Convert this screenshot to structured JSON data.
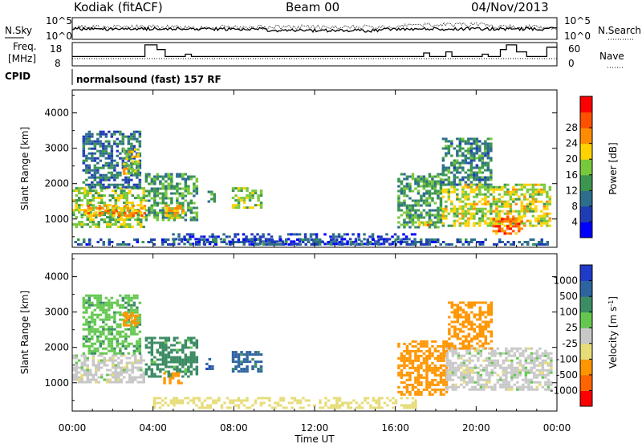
{
  "header": {
    "station": "Kodiak (fitACF)",
    "beam": "Beam 00",
    "date": "04/Nov/2013"
  },
  "top_panel": {
    "left_label": "N.Sky",
    "right_label": "N.Search",
    "left_ticks": [
      "10^5",
      "10^0"
    ],
    "right_ticks": [
      "10^5",
      "10^0"
    ]
  },
  "freq_panel": {
    "left_label_line1": "Freq.",
    "left_label_line2": "[MHz]",
    "right_label": "Nave",
    "left_ticks": [
      "18",
      "8"
    ],
    "right_ticks": [
      "60",
      "0"
    ],
    "series": [
      {
        "x_hours": [
          0,
          3.6,
          3.6,
          4.2,
          4.2,
          4.6,
          4.6,
          5.6,
          5.6,
          5.9,
          5.9,
          17.4,
          17.4,
          17.7,
          17.7,
          18.5,
          18.5,
          18.8,
          18.8,
          20.3,
          20.3,
          20.6,
          20.6,
          21.2,
          21.2,
          21.5,
          21.5,
          22.0,
          22.0,
          22.5,
          22.5,
          23.5,
          23.5,
          24
        ],
        "freq_mhz": [
          12,
          12,
          17,
          17,
          15,
          15,
          12,
          12,
          13,
          13,
          12,
          12,
          13.5,
          13.5,
          12,
          12,
          14,
          14,
          12,
          12,
          13,
          13,
          12,
          12,
          15,
          15,
          17,
          17,
          14,
          14,
          12,
          12,
          16,
          16
        ]
      }
    ]
  },
  "cpid": {
    "label": "CPID",
    "program": "normalsound (fast) 157 RF"
  },
  "x_axis": {
    "label": "Time UT",
    "ticks": [
      "00:00",
      "04:00",
      "08:00",
      "12:00",
      "16:00",
      "20:00",
      "00:00"
    ]
  },
  "chart_data": [
    {
      "type": "heatmap",
      "panel": "power",
      "ylabel": "Slant Range [km]",
      "y_ticks": [
        1000,
        2000,
        3000,
        4000
      ],
      "ylim": [
        200,
        4650
      ],
      "xlim_hours": [
        0,
        24
      ],
      "colorbar": {
        "label": "Power [dB]",
        "ticks": [
          "4",
          "8",
          "12",
          "16",
          "20",
          "24",
          "28"
        ],
        "colors": [
          "#0000ff",
          "#1e3cb4",
          "#2d6e8c",
          "#3c9650",
          "#78c83c",
          "#ffd200",
          "#ff8c00",
          "#ff5000",
          "#ff0000"
        ]
      },
      "regions": [
        {
          "x0": 0.0,
          "x1": 3.6,
          "y0": 800,
          "y1": 1900,
          "value": 18
        },
        {
          "x0": 0.6,
          "x1": 3.6,
          "y0": 1100,
          "y1": 1400,
          "value": 26
        },
        {
          "x0": 0.5,
          "x1": 3.4,
          "y0": 1900,
          "y1": 3500,
          "value": 10
        },
        {
          "x0": 2.5,
          "x1": 3.3,
          "y0": 2300,
          "y1": 3000,
          "value": 20
        },
        {
          "x0": 3.6,
          "x1": 6.2,
          "y0": 1000,
          "y1": 2300,
          "value": 14
        },
        {
          "x0": 4.6,
          "x1": 5.5,
          "y0": 1000,
          "y1": 1400,
          "value": 22
        },
        {
          "x0": 7.9,
          "x1": 9.3,
          "y0": 1300,
          "y1": 1900,
          "value": 18
        },
        {
          "x0": 6.7,
          "x1": 7.1,
          "y0": 1500,
          "y1": 1800,
          "value": 12
        },
        {
          "x0": 4.8,
          "x1": 17.0,
          "y0": 300,
          "y1": 600,
          "value": 6
        },
        {
          "x0": 16.1,
          "x1": 18.3,
          "y0": 800,
          "y1": 2300,
          "value": 14
        },
        {
          "x0": 17.0,
          "x1": 17.8,
          "y0": 800,
          "y1": 1000,
          "value": 24
        },
        {
          "x0": 18.3,
          "x1": 23.7,
          "y0": 800,
          "y1": 2000,
          "value": 20
        },
        {
          "x0": 20.8,
          "x1": 22.3,
          "y0": 600,
          "y1": 1100,
          "value": 28
        },
        {
          "x0": 18.3,
          "x1": 20.8,
          "y0": 2000,
          "y1": 3300,
          "value": 12
        },
        {
          "x0": 0.1,
          "x1": 23.8,
          "y0": 250,
          "y1": 450,
          "value": 8
        }
      ]
    },
    {
      "type": "heatmap",
      "panel": "velocity",
      "ylabel": "Slant Range [km]",
      "y_ticks": [
        1000,
        2000,
        3000,
        4000
      ],
      "ylim": [
        200,
        4650
      ],
      "xlim_hours": [
        0,
        24
      ],
      "colorbar": {
        "label": "Velocity [m s",
        "label_sup": "-1",
        "label_close": "]",
        "ticks": [
          "1000",
          "500",
          "100",
          "25",
          "-25",
          "-100",
          "-500",
          "-1000"
        ],
        "colors": [
          "#1e3cc8",
          "#2d64a0",
          "#3c8c64",
          "#64c850",
          "#c8c8c8",
          "#e6dc78",
          "#ff9600",
          "#ff6400",
          "#ff0000"
        ]
      },
      "regions": [
        {
          "x0": 0.0,
          "x1": 3.6,
          "y0": 1000,
          "y1": 1800,
          "value": 0
        },
        {
          "x0": 0.5,
          "x1": 3.4,
          "y0": 1800,
          "y1": 3500,
          "value": 80
        },
        {
          "x0": 2.5,
          "x1": 3.3,
          "y0": 2600,
          "y1": 3000,
          "value": -300
        },
        {
          "x0": 3.6,
          "x1": 6.2,
          "y0": 1200,
          "y1": 2300,
          "value": 150
        },
        {
          "x0": 4.5,
          "x1": 5.4,
          "y0": 1000,
          "y1": 1300,
          "value": -300
        },
        {
          "x0": 7.9,
          "x1": 9.3,
          "y0": 1300,
          "y1": 1900,
          "value": 700
        },
        {
          "x0": 6.6,
          "x1": 7.0,
          "y0": 1400,
          "y1": 1700,
          "value": 900
        },
        {
          "x0": 4.0,
          "x1": 17.0,
          "y0": 300,
          "y1": 600,
          "value": -60
        },
        {
          "x0": 16.1,
          "x1": 18.5,
          "y0": 700,
          "y1": 2200,
          "value": -300
        },
        {
          "x0": 18.5,
          "x1": 23.7,
          "y0": 800,
          "y1": 2000,
          "value": 0
        },
        {
          "x0": 18.6,
          "x1": 20.8,
          "y0": 2000,
          "y1": 3300,
          "value": -300
        }
      ]
    }
  ]
}
